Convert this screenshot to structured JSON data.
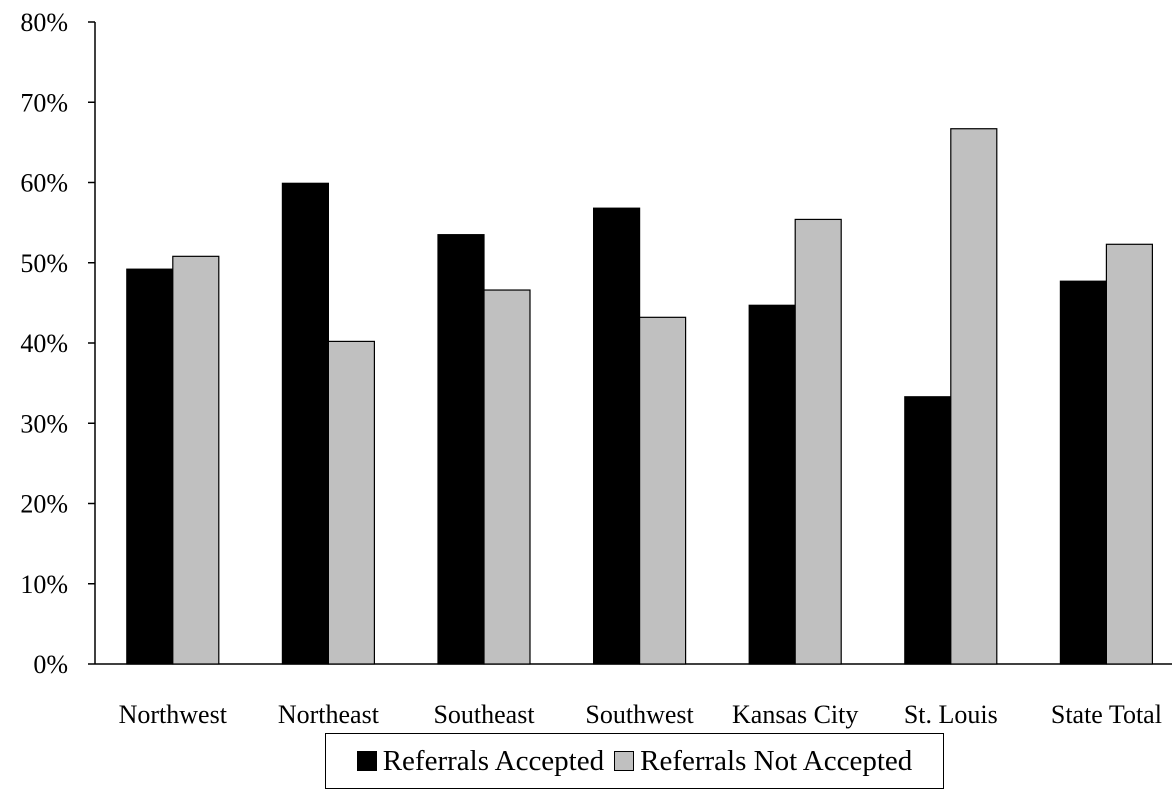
{
  "chart_data": {
    "type": "bar",
    "title": "",
    "xlabel": "",
    "ylabel": "",
    "categories": [
      "Northwest",
      "Northeast",
      "Southeast",
      "Southwest",
      "Kansas City",
      "St. Louis",
      "State Total"
    ],
    "series": [
      {
        "name": "Referrals Accepted",
        "color": "#000000",
        "values": [
          49.2,
          59.9,
          53.5,
          56.8,
          44.7,
          33.3,
          47.7
        ]
      },
      {
        "name": "Referrals Not Accepted",
        "color": "#c0c0c0",
        "values": [
          50.8,
          40.2,
          46.6,
          43.2,
          55.4,
          66.7,
          52.3
        ]
      }
    ],
    "ylim": [
      0,
      80
    ],
    "yticks": [
      0,
      10,
      20,
      30,
      40,
      50,
      60,
      70,
      80
    ],
    "ytick_labels": [
      "0%",
      "10%",
      "20%",
      "30%",
      "40%",
      "50%",
      "60%",
      "70%",
      "80%"
    ],
    "grid": false,
    "legend_position": "bottom"
  }
}
